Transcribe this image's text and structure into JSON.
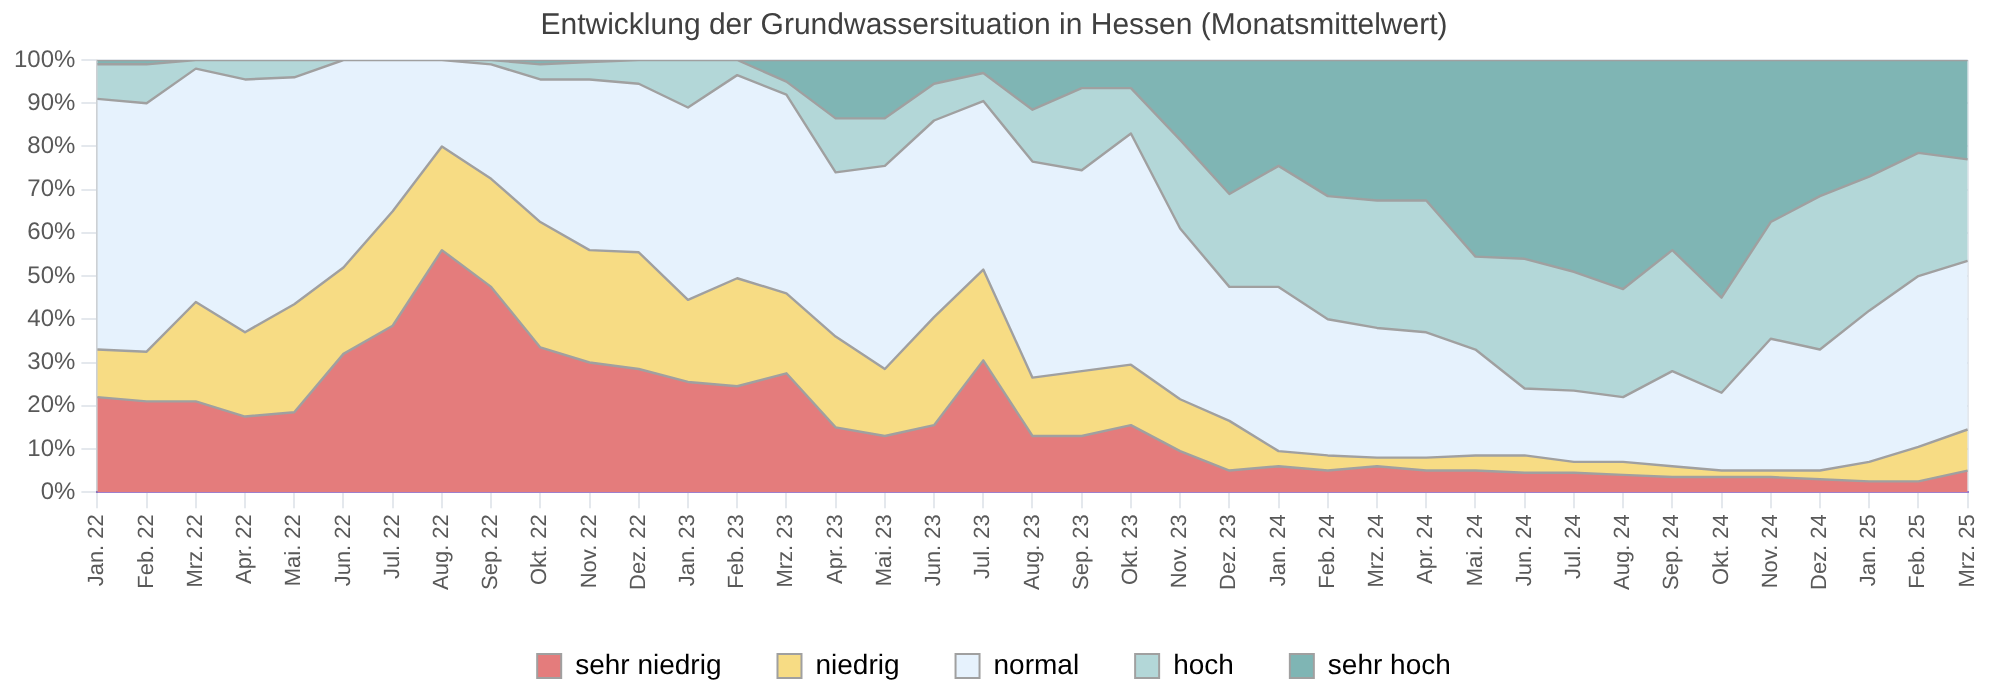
{
  "chart_data": {
    "type": "area",
    "title": "Entwicklung der Grundwassersituation in Hessen (Monatsmittelwert)",
    "categories": [
      "Jan. 22",
      "Feb. 22",
      "Mrz. 22",
      "Apr. 22",
      "Mai. 22",
      "Jun. 22",
      "Jul. 22",
      "Aug. 22",
      "Sep. 22",
      "Okt. 22",
      "Nov. 22",
      "Dez. 22",
      "Jan. 23",
      "Feb. 23",
      "Mrz. 23",
      "Apr. 23",
      "Mai. 23",
      "Jun. 23",
      "Jul. 23",
      "Aug. 23",
      "Sep. 23",
      "Okt. 23",
      "Nov. 23",
      "Dez. 23",
      "Jan. 24",
      "Feb. 24",
      "Mrz. 24",
      "Apr. 24",
      "Mai. 24",
      "Jun. 24",
      "Jul. 24",
      "Aug. 24",
      "Sep. 24",
      "Okt. 24",
      "Nov. 24",
      "Dez. 24",
      "Jan. 25",
      "Feb. 25",
      "Mrz. 25"
    ],
    "stacked": true,
    "series": [
      {
        "name": "sehr niedrig",
        "color": "#e47c7c",
        "values": [
          22,
          21,
          21,
          17.5,
          18.5,
          32,
          38.5,
          56,
          47.5,
          33.5,
          30,
          28.5,
          25.5,
          24.5,
          27.5,
          15,
          13,
          15.5,
          30.5,
          13,
          13,
          15.5,
          9.5,
          5,
          6,
          5,
          6,
          5,
          5,
          4.5,
          4.5,
          4,
          3.5,
          3.5,
          3.5,
          3,
          2.5,
          2.5,
          5
        ]
      },
      {
        "name": "niedrig",
        "color": "#f7dc84",
        "values": [
          11,
          11.5,
          23,
          19.5,
          25,
          20,
          26.5,
          24,
          25,
          29,
          26,
          27,
          19,
          25,
          18.5,
          21,
          15.5,
          25,
          21,
          13.5,
          15,
          14,
          12,
          11.5,
          3.5,
          3.5,
          2,
          3,
          3.5,
          4,
          2.5,
          3,
          2.5,
          1.5,
          1.5,
          2,
          4.5,
          8,
          9.5
        ]
      },
      {
        "name": "normal",
        "color": "#e6f2fd",
        "values": [
          58,
          57.5,
          54,
          58.5,
          52.5,
          48,
          35,
          20,
          26.5,
          33,
          39.5,
          39,
          44.5,
          47,
          46,
          38,
          47,
          45.5,
          39,
          50,
          46.5,
          53.5,
          39.5,
          31,
          38,
          31.5,
          30,
          29,
          24.5,
          15.5,
          16.5,
          15,
          22,
          18,
          30.5,
          28,
          35,
          39.5,
          39
        ]
      },
      {
        "name": "hoch",
        "color": "#b3d7d8",
        "values": [
          8,
          9,
          2,
          4.5,
          4,
          0,
          0,
          0,
          1,
          3.5,
          4,
          5.5,
          11,
          3.5,
          3,
          12.5,
          11,
          8.5,
          6.5,
          12,
          19,
          10.5,
          20.5,
          21.5,
          28,
          28.5,
          29.5,
          30.5,
          21.5,
          30,
          27.5,
          25,
          28,
          22,
          27,
          35.5,
          31,
          28.5,
          23.5
        ]
      },
      {
        "name": "sehr hoch",
        "color": "#7fb5b4",
        "values": [
          1,
          1,
          0,
          0,
          0,
          0,
          0,
          0,
          0,
          1,
          0.5,
          0,
          0,
          0,
          5,
          13.5,
          13.5,
          5.5,
          3,
          11.5,
          6.5,
          6.5,
          18.5,
          31,
          24.5,
          31.5,
          32.5,
          32.5,
          45.5,
          46,
          49,
          53,
          44,
          55,
          37.5,
          31.5,
          27,
          21.5,
          23
        ]
      }
    ],
    "ylim": [
      0,
      100
    ],
    "yticks": [
      {
        "value": 0,
        "label": "0%"
      },
      {
        "value": 10,
        "label": "10%"
      },
      {
        "value": 20,
        "label": "20%"
      },
      {
        "value": 30,
        "label": "30%"
      },
      {
        "value": 40,
        "label": "40%"
      },
      {
        "value": 50,
        "label": "50%"
      },
      {
        "value": 60,
        "label": "60%"
      },
      {
        "value": 70,
        "label": "70%"
      },
      {
        "value": 80,
        "label": "80%"
      },
      {
        "value": 90,
        "label": "90%"
      },
      {
        "value": 100,
        "label": "100%"
      }
    ],
    "grid": true,
    "legend": "bottom",
    "marker": "none"
  }
}
